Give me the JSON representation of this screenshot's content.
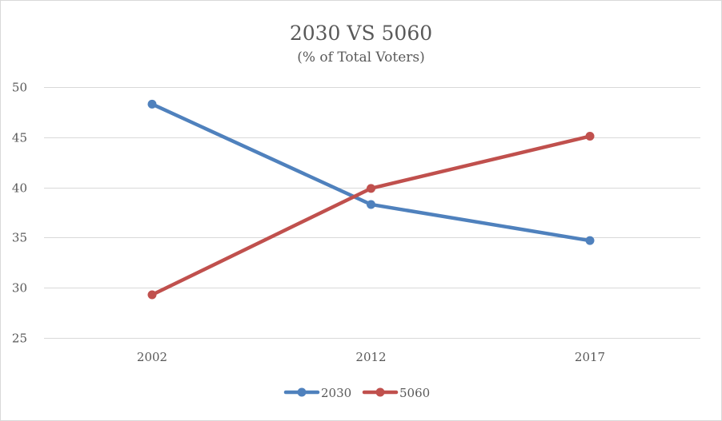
{
  "chart_data": {
    "type": "line",
    "title": "2030 VS 5060",
    "subtitle": "(% of Total Voters)",
    "xlabel": "",
    "ylabel": "",
    "categories": [
      "2002",
      "2012",
      "2017"
    ],
    "ylim": [
      25,
      50
    ],
    "yticks": [
      25,
      30,
      35,
      40,
      45,
      50
    ],
    "grid": true,
    "legend_position": "bottom",
    "series": [
      {
        "name": "2030",
        "values": [
          48.3,
          38.3,
          34.7
        ],
        "color": "#4f81bd"
      },
      {
        "name": "5060",
        "values": [
          29.3,
          39.9,
          45.1
        ],
        "color": "#c0504d"
      }
    ]
  }
}
